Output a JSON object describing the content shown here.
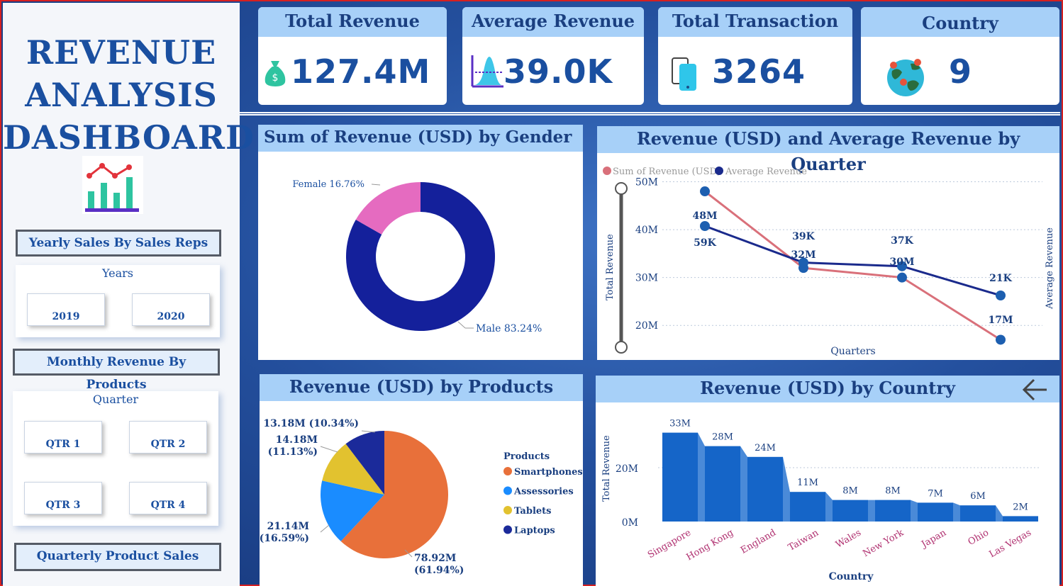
{
  "dashboard": {
    "title_line1": "REVENUE",
    "title_line2": "ANALYSIS",
    "title_line3": "DASHBOARD"
  },
  "sidebar": {
    "nav_yearly": "Yearly Sales By Sales Reps",
    "years_title": "Years",
    "year_2019": "2019",
    "year_2020": "2020",
    "nav_monthly": "Monthly Revenue By Products",
    "quarter_title": "Quarter",
    "qtr1": "QTR 1",
    "qtr2": "QTR 2",
    "qtr3": "QTR 3",
    "qtr4": "QTR 4",
    "nav_quarterly": "Quarterly Product Sales"
  },
  "kpis": {
    "total_revenue_label": "Total Revenue",
    "total_revenue_value": "127.4M",
    "avg_revenue_label": "Average Revenue",
    "avg_revenue_value": "39.0K",
    "total_txn_label": "Total Transaction",
    "total_txn_value": "3264",
    "country_label": "Country",
    "country_value": "9"
  },
  "icons": [
    "money-bag-icon",
    "bell-curve-icon",
    "phone-icon",
    "globe-pins-icon",
    "line-bar-chart-icon",
    "back-arrow-icon"
  ],
  "colors": {
    "brand_blue": "#1a4fa0",
    "header_bg": "#a7d0f8",
    "male": "#14209b",
    "female": "#e56bc0",
    "revenue_line": "#d9707a",
    "avg_line": "#1a2a8c",
    "smartphones": "#e8703a",
    "assessories": "#1a8cff",
    "tablets": "#e2c22f",
    "laptops": "#1b2a9a",
    "country_bar": "#1565c8"
  },
  "chart_data": [
    {
      "type": "pie",
      "title": "Sum of Revenue (USD) by Gender",
      "categories": [
        "Male",
        "Female"
      ],
      "values": [
        83.24,
        16.76
      ],
      "labels": [
        "Male 83.24%",
        "Female 16.76%"
      ]
    },
    {
      "type": "line",
      "title": "Revenue (USD) and Average Revenue by Quarter",
      "xlabel": "Quarters",
      "ylabel": "Total Revenue",
      "y2label": "Average Revenue",
      "yticks": [
        "50M",
        "40M",
        "30M",
        "20M"
      ],
      "ylim": [
        15,
        52
      ],
      "series": [
        {
          "name": "Sum of Revenue (USD)",
          "values": [
            48,
            32,
            30,
            17
          ],
          "labels": [
            "48M",
            "32M",
            "30M",
            "17M"
          ]
        },
        {
          "name": "Average Revenue",
          "values": [
            59,
            39,
            37,
            21
          ],
          "labels": [
            "59K",
            "39K",
            "37K",
            "21K"
          ]
        }
      ]
    },
    {
      "type": "pie",
      "title": "Revenue (USD) by Products",
      "legend_title": "Products",
      "categories": [
        "Smartphones",
        "Assessories",
        "Tablets",
        "Laptops"
      ],
      "values": [
        78.92,
        21.14,
        14.18,
        13.18
      ],
      "labels_line1": [
        "78.92M",
        "21.14M",
        "14.18M",
        "13.18M (10.34%)"
      ],
      "labels_line2": [
        "(61.94%)",
        "(16.59%)",
        "(11.13%)",
        ""
      ]
    },
    {
      "type": "bar",
      "title": "Revenue (USD) by Country",
      "xlabel": "Country",
      "ylabel": "Total Revenue",
      "yticks": [
        "20M",
        "0M"
      ],
      "categories": [
        "Singapore",
        "Hong Kong",
        "England",
        "Taiwan",
        "Wales",
        "New York",
        "Japan",
        "Ohio",
        "Las Vegas"
      ],
      "values": [
        33,
        28,
        24,
        11,
        8,
        8,
        7,
        6,
        2
      ],
      "labels": [
        "33M",
        "28M",
        "24M",
        "11M",
        "8M",
        "8M",
        "7M",
        "6M",
        "2M"
      ]
    }
  ]
}
